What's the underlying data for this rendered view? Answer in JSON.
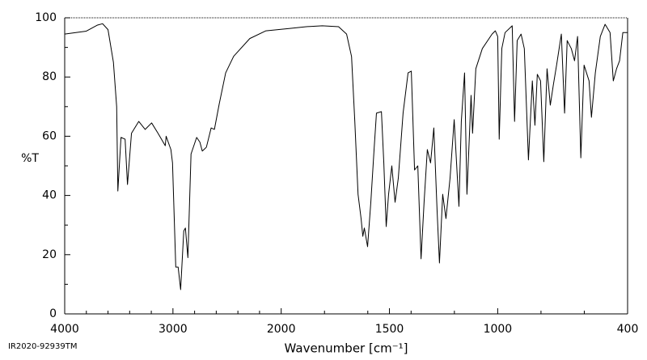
{
  "chart_data": {
    "type": "line",
    "xlabel": "Wavenumber [cm⁻¹]",
    "ylabel": "%T",
    "footnote": "IR2020-92939TM",
    "xlim": [
      4000,
      400
    ],
    "x_break": 2000,
    "x_break_zoom": 2,
    "xticks": [
      4000,
      3000,
      2000,
      1500,
      1000,
      400
    ],
    "xminor": [
      3800,
      3600,
      3400,
      3200,
      2800,
      2600,
      2400,
      2200,
      1800,
      1600,
      1400,
      1200,
      800,
      600
    ],
    "ylim": [
      0,
      100
    ],
    "yticks": [
      0,
      20,
      40,
      60,
      80,
      100
    ],
    "yminor": [
      10,
      30,
      50,
      70,
      90
    ],
    "grid": false,
    "series": [
      {
        "name": "%T",
        "color": "#000000",
        "x": [
          4000,
          3800,
          3700,
          3650,
          3600,
          3550,
          3520,
          3509,
          3480,
          3442,
          3420,
          3383,
          3316,
          3257,
          3197,
          3138,
          3071,
          3063,
          3019,
          3004,
          2974,
          2952,
          2929,
          2900,
          2885,
          2862,
          2833,
          2781,
          2751,
          2729,
          2691,
          2647,
          2617,
          2572,
          2513,
          2439,
          2290,
          2141,
          2030,
          1959,
          1884,
          1810,
          1735,
          1698,
          1675,
          1660,
          1645,
          1631,
          1623,
          1616,
          1601,
          1586,
          1571,
          1560,
          1537,
          1526,
          1515,
          1504,
          1489,
          1474,
          1459,
          1437,
          1414,
          1399,
          1384,
          1369,
          1354,
          1340,
          1325,
          1310,
          1295,
          1280,
          1269,
          1254,
          1239,
          1220,
          1201,
          1190,
          1179,
          1168,
          1153,
          1142,
          1131,
          1123,
          1116,
          1101,
          1071,
          1026,
          1011,
          1000,
          993,
          981,
          966,
          933,
          922,
          910,
          892,
          877,
          858,
          840,
          828,
          817,
          802,
          787,
          772,
          757,
          743,
          728,
          706,
          691,
          679,
          660,
          645,
          631,
          616,
          601,
          578,
          567,
          549,
          526,
          504,
          481,
          466,
          451,
          437,
          422,
          400
        ],
        "values": [
          94.5,
          95.5,
          97.5,
          98,
          96,
          85,
          70,
          41.5,
          59.6,
          59,
          43.7,
          61,
          65,
          62.3,
          64.5,
          61,
          56.8,
          60,
          55.5,
          51,
          15.8,
          15.8,
          8.2,
          28,
          29,
          19,
          54,
          59.6,
          58,
          55,
          56.3,
          62.8,
          62.3,
          71,
          81.4,
          87,
          93,
          95.6,
          96,
          96.4,
          97,
          97.3,
          97,
          94.5,
          86.9,
          65,
          40.4,
          32.2,
          26.2,
          29,
          22.7,
          37.7,
          55.5,
          67.8,
          68.3,
          51,
          29.5,
          40.4,
          50,
          37.7,
          45.9,
          67.8,
          81.4,
          82,
          48.6,
          50,
          18.6,
          37.7,
          55.5,
          51,
          62.8,
          35,
          17.2,
          40.4,
          32.2,
          45.9,
          65.6,
          51,
          36.3,
          65,
          81.4,
          40.4,
          59.6,
          73.8,
          61,
          82.8,
          89.6,
          94.5,
          95.6,
          93.7,
          59,
          89.6,
          95,
          97.3,
          65,
          92.3,
          94.5,
          89.6,
          52,
          78.7,
          63.7,
          80.9,
          78.7,
          51.4,
          82.8,
          70.5,
          77.3,
          84,
          94.5,
          67.8,
          92.3,
          89.6,
          85.5,
          93.7,
          52.7,
          84,
          78.7,
          66.4,
          81.4,
          93.7,
          97.8,
          95,
          78.7,
          82.8,
          85.5,
          95,
          95
        ]
      }
    ]
  }
}
